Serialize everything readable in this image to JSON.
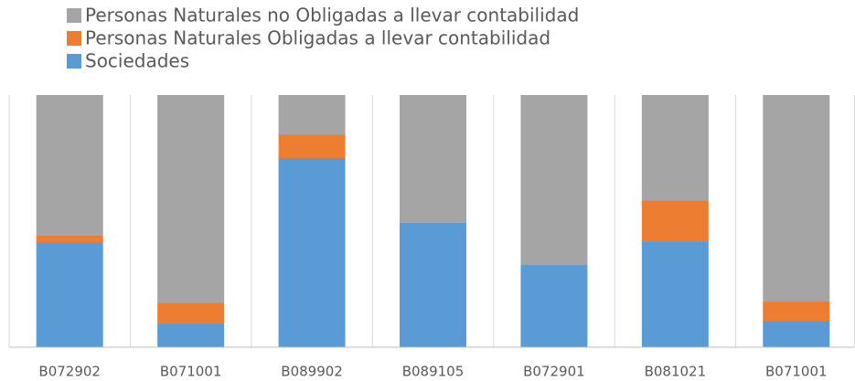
{
  "chart_data": {
    "type": "stacked_bar_100",
    "categories": [
      "B072902",
      "B071001",
      "B089902",
      "B089105",
      "B072901",
      "B081021",
      "B071001"
    ],
    "series": [
      {
        "name": "Sociedades",
        "color": "#5b9bd5",
        "values": [
          41.3,
          9.4,
          75.0,
          49.3,
          32.6,
          42.0,
          10.5
        ]
      },
      {
        "name": "Personas Naturales Obligadas a llevar contabilidad",
        "color": "#ed7d31",
        "values": [
          2.9,
          8.3,
          9.4,
          0,
          0,
          16.3,
          7.6
        ]
      },
      {
        "name": "Personas Naturales no Obligadas a llevar contabilidad",
        "color": "#a5a5a5",
        "values": [
          55.8,
          82.3,
          15.6,
          50.7,
          67.4,
          41.7,
          81.9
        ]
      }
    ],
    "ylim": [
      0,
      100
    ]
  }
}
